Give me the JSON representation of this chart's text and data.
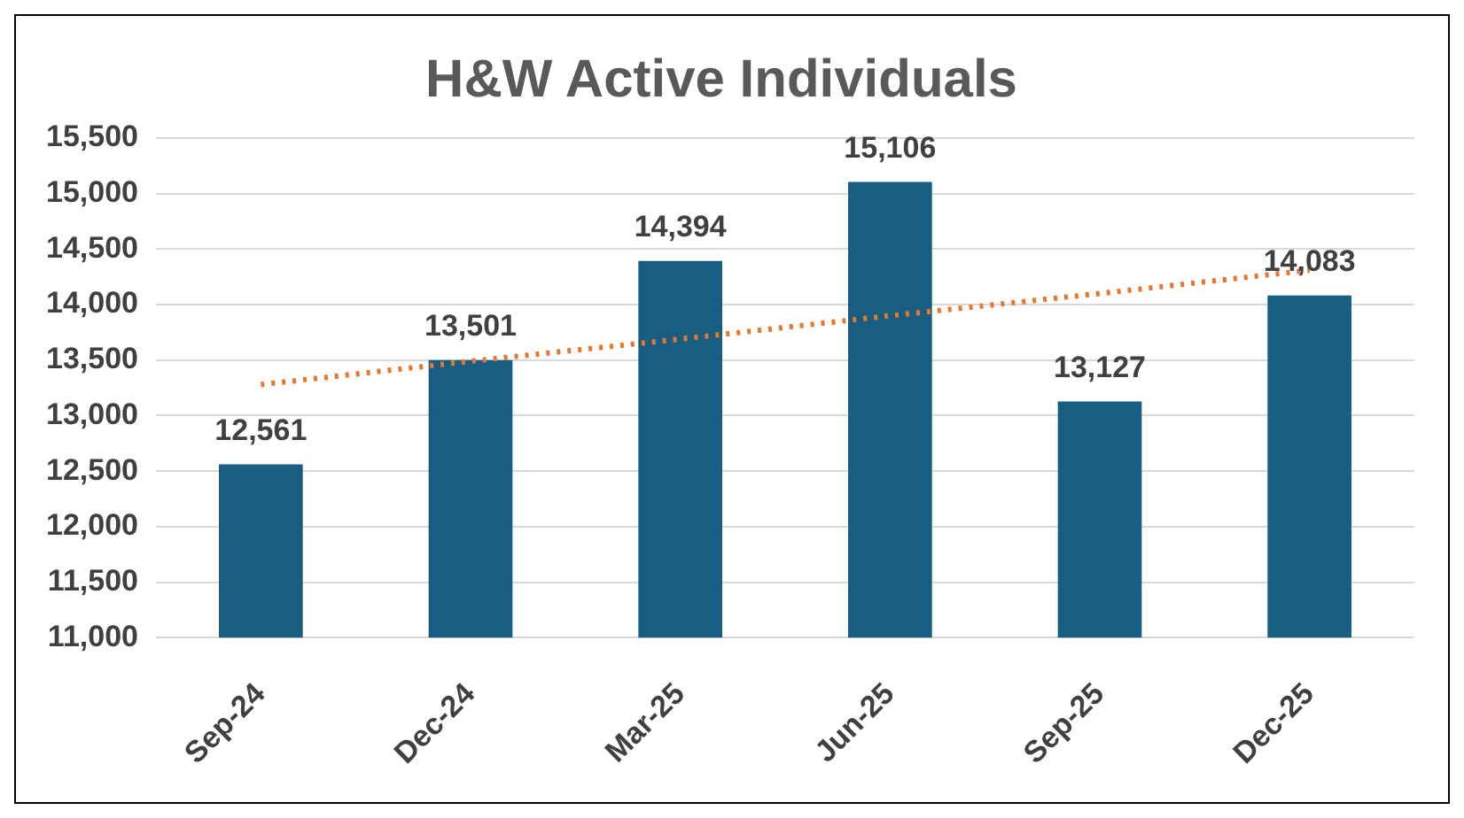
{
  "chart_data": {
    "type": "bar",
    "title": "H&W Active Individuals",
    "categories": [
      "Sep-24",
      "Dec-24",
      "Mar-25",
      "Jun-25",
      "Sep-25",
      "Dec-25"
    ],
    "series": [
      {
        "color": "#175e82",
        "values": [
          12561,
          13501,
          14394,
          15106,
          13127,
          14083
        ],
        "value_labels": [
          "12,561",
          "13,501",
          "14,394",
          "15,106",
          "13,127",
          "14,083"
        ]
      },
      {
        "type": "line",
        "color": "#e8772e",
        "line_style": "dotted",
        "values": [
          13280,
          13490,
          13690,
          13900,
          14100,
          14310
        ]
      }
    ],
    "ylim": [
      11000,
      15500
    ],
    "yticks": [
      {
        "value": 11000,
        "label": "11,000"
      },
      {
        "value": 11500,
        "label": "11,500"
      },
      {
        "value": 12000,
        "label": "12,000"
      },
      {
        "value": 12500,
        "label": "12,500"
      },
      {
        "value": 13000,
        "label": "13,000"
      },
      {
        "value": 13500,
        "label": "13,500"
      },
      {
        "value": 14000,
        "label": "14,000"
      },
      {
        "value": 14500,
        "label": "14,500"
      },
      {
        "value": 15000,
        "label": "15,000"
      },
      {
        "value": 15500,
        "label": "15,500"
      }
    ],
    "grid": "y",
    "legend": false,
    "marker": "none"
  }
}
